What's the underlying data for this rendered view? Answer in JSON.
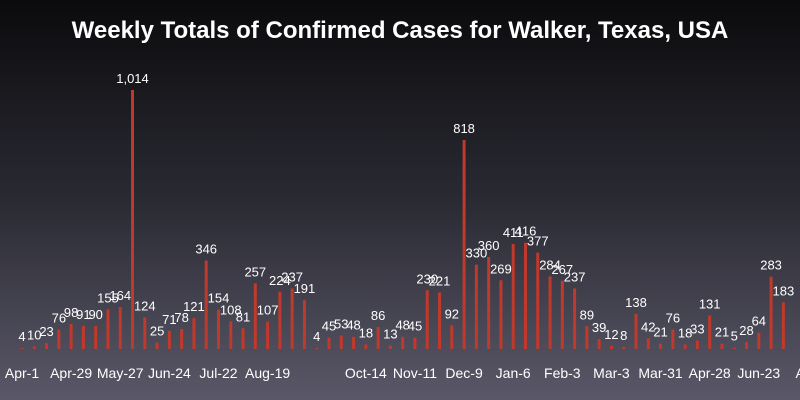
{
  "chart_data": {
    "type": "bar",
    "title": "Weekly Totals of Confirmed Cases for Walker, Texas, USA",
    "xlabel": "",
    "ylabel": "",
    "ylim": [
      0,
      1014
    ],
    "grid": false,
    "legend": "none",
    "colors": {
      "bar": "#c0392b",
      "text": "#ffffff"
    },
    "values": [
      4,
      10,
      23,
      76,
      98,
      91,
      90,
      155,
      164,
      1014,
      124,
      25,
      71,
      78,
      121,
      346,
      154,
      108,
      81,
      257,
      107,
      224,
      237,
      191,
      4,
      45,
      53,
      48,
      18,
      86,
      13,
      48,
      45,
      230,
      221,
      92,
      818,
      330,
      360,
      269,
      411,
      416,
      377,
      284,
      267,
      237,
      89,
      39,
      12,
      8,
      138,
      42,
      21,
      76,
      18,
      33,
      131,
      21,
      5,
      28,
      64,
      283,
      183
    ],
    "tick_labels": [
      {
        "index": 0,
        "label": "Apr-1"
      },
      {
        "index": 4,
        "label": "Apr-29"
      },
      {
        "index": 8,
        "label": "May-27"
      },
      {
        "index": 12,
        "label": "Jun-24"
      },
      {
        "index": 16,
        "label": "Jul-22"
      },
      {
        "index": 20,
        "label": "Aug-19"
      },
      {
        "index": 28,
        "label": "Oct-14"
      },
      {
        "index": 32,
        "label": "Nov-11"
      },
      {
        "index": 36,
        "label": "Dec-9"
      },
      {
        "index": 40,
        "label": "Jan-6"
      },
      {
        "index": 44,
        "label": "Feb-3"
      },
      {
        "index": 48,
        "label": "Mar-3"
      },
      {
        "index": 52,
        "label": "Mar-31"
      },
      {
        "index": 56,
        "label": "Apr-28"
      },
      {
        "index": 60,
        "label": "Jun-23"
      },
      {
        "index": 64,
        "label": "Aug"
      }
    ]
  }
}
